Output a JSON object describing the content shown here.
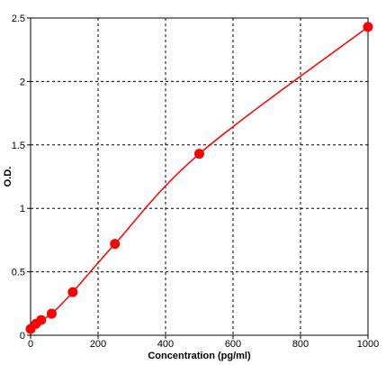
{
  "chart_data": {
    "type": "line",
    "title": "",
    "xlabel": "Concentration (pg/ml)",
    "ylabel": "O.D.",
    "xlim": [
      0,
      1000
    ],
    "ylim": [
      0,
      2.5
    ],
    "x_ticks": [
      0,
      200,
      400,
      600,
      800,
      1000
    ],
    "y_ticks": [
      0,
      0.5,
      1,
      1.5,
      2,
      2.5
    ],
    "x_tick_labels": [
      "0",
      "200",
      "400",
      "600",
      "800",
      "1000"
    ],
    "y_tick_labels": [
      "0",
      "0.5",
      "1",
      "1.5",
      "2",
      "2.5"
    ],
    "grid": true,
    "grid_style": "dashed",
    "legend": "none",
    "series": [
      {
        "x": [
          0,
          15.6,
          31.25,
          62.5,
          125,
          250,
          500,
          1000
        ],
        "y": [
          0.05,
          0.09,
          0.12,
          0.17,
          0.34,
          0.72,
          1.43,
          2.43
        ],
        "marker": "circle",
        "color": "#ff0000",
        "line": "smooth"
      }
    ]
  }
}
